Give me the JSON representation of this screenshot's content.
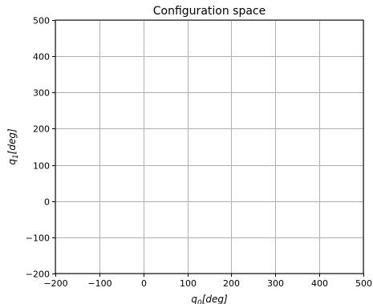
{
  "chart_data": {
    "type": "scatter",
    "title": "Configuration space",
    "xlabel": "q_0[deg]",
    "ylabel": "q_1[deg]",
    "xlabel_parts": {
      "var": "q",
      "sub": "0",
      "unit": "[deg]"
    },
    "ylabel_parts": {
      "var": "q",
      "sub": "1",
      "unit": "[deg]"
    },
    "xlim": [
      -200,
      500
    ],
    "ylim": [
      -200,
      500
    ],
    "xticks": [
      -200,
      -100,
      0,
      100,
      200,
      300,
      400,
      500
    ],
    "yticks": [
      -200,
      -100,
      0,
      100,
      200,
      300,
      400,
      500
    ],
    "xtick_labels": [
      "−200",
      "−100",
      "0",
      "100",
      "200",
      "300",
      "400",
      "500"
    ],
    "ytick_labels": [
      "−200",
      "−100",
      "0",
      "100",
      "200",
      "300",
      "400",
      "500"
    ],
    "grid": true,
    "series": [],
    "colors": {
      "grid": "#b0b0b0",
      "axes": "#000000",
      "background": "#ffffff"
    }
  }
}
